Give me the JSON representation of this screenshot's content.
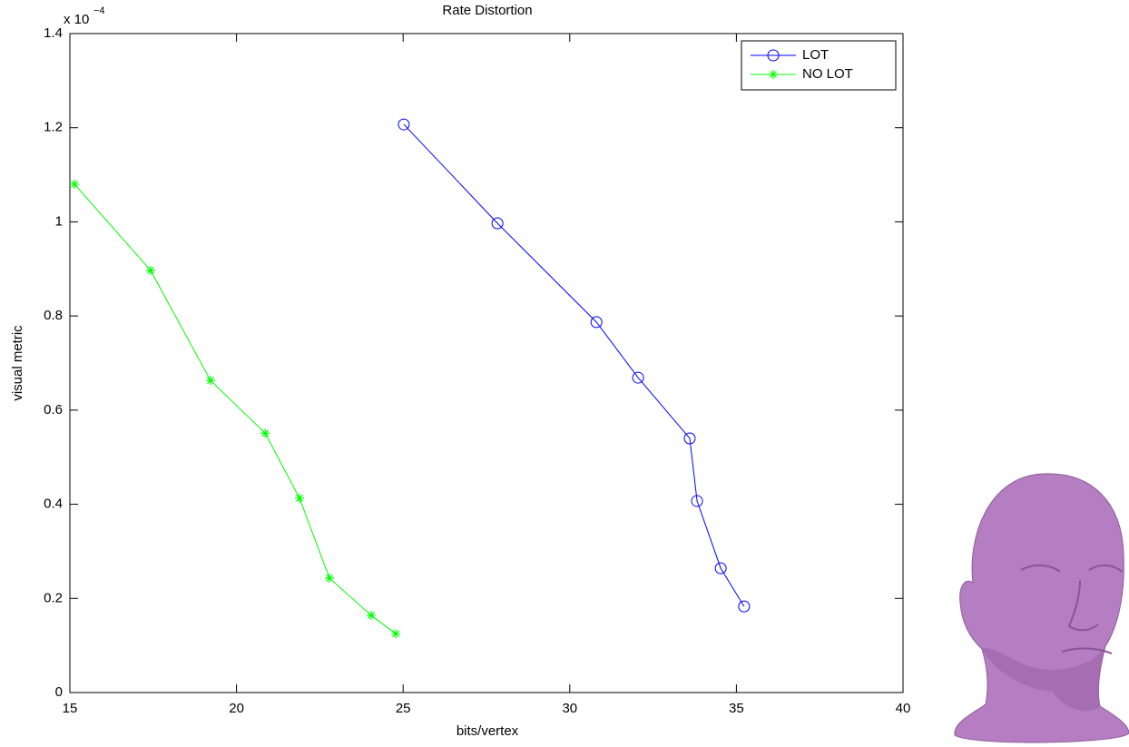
{
  "chart_data": {
    "type": "line",
    "title": "Rate Distortion",
    "x_label": "bits/vertex",
    "y_label": "visual metric",
    "y_multiplier": "x 10",
    "y_exponent": "−4",
    "xlim": [
      15,
      40
    ],
    "xticks": [
      15,
      20,
      25,
      30,
      35,
      40
    ],
    "ylim": [
      0,
      1.4
    ],
    "yticks": [
      0,
      0.2,
      0.4,
      0.6,
      0.8,
      1,
      1.2,
      1.4
    ],
    "legend": "upper right",
    "series": [
      {
        "name": "LOT",
        "color": "#0000ff",
        "marker": "circle",
        "x": [
          25.02,
          27.83,
          30.8,
          32.05,
          33.6,
          33.82,
          34.53,
          35.23
        ],
        "values": [
          1.207,
          0.997,
          0.787,
          0.669,
          0.54,
          0.407,
          0.264,
          0.183
        ]
      },
      {
        "name": "NO LOT",
        "color": "#00ff00",
        "marker": "asterisk",
        "x": [
          15.14,
          17.42,
          19.22,
          20.86,
          21.89,
          22.79,
          24.04,
          24.78
        ],
        "values": [
          1.08,
          0.897,
          0.663,
          0.551,
          0.413,
          0.243,
          0.164,
          0.125
        ]
      }
    ]
  }
}
